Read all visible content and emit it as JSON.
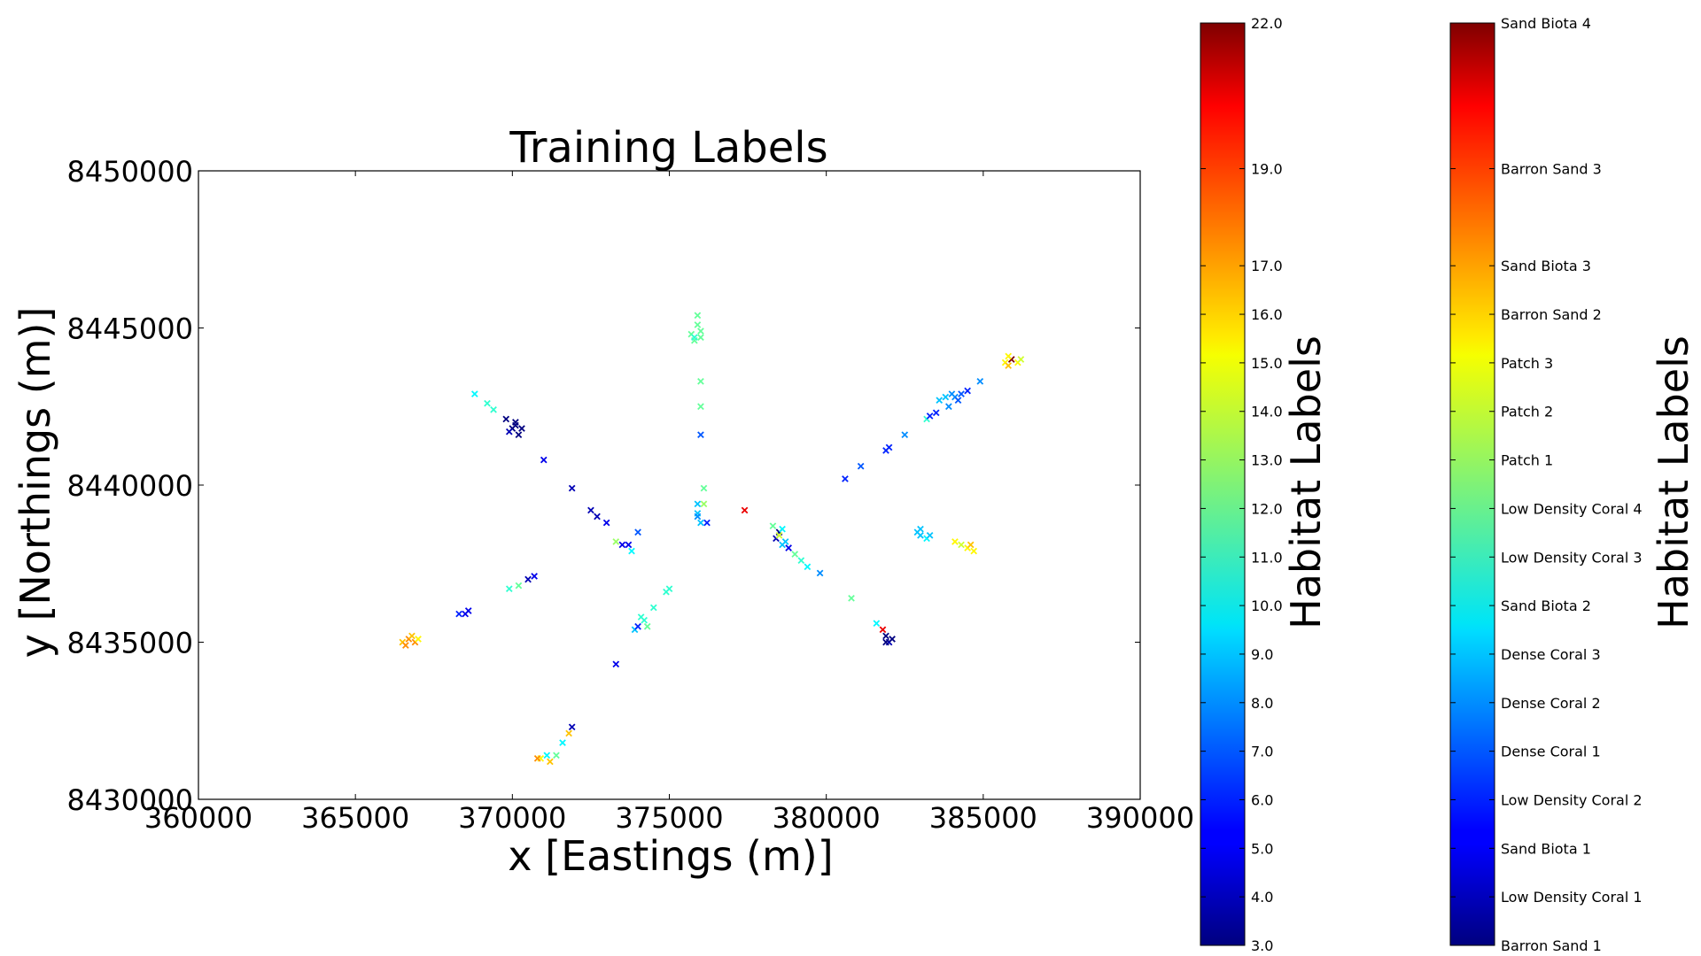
{
  "chart_data": {
    "type": "scatter",
    "title": "Training Labels",
    "xlabel": "x [Eastings (m)]",
    "ylabel": "y [Northings (m)]",
    "xlim": [
      360000,
      390000
    ],
    "ylim": [
      8430000,
      8450000
    ],
    "xticks": [
      "360000",
      "365000",
      "370000",
      "375000",
      "380000",
      "385000",
      "390000"
    ],
    "yticks": [
      "8430000",
      "8435000",
      "8440000",
      "8445000",
      "8450000"
    ],
    "marker": "x",
    "colormap": "jet",
    "grid": false,
    "points": [
      [
        368800,
        8442900,
        10
      ],
      [
        369200,
        8442600,
        11
      ],
      [
        369400,
        8442400,
        11
      ],
      [
        369800,
        8442100,
        3
      ],
      [
        370000,
        8441800,
        3
      ],
      [
        370100,
        8442000,
        3
      ],
      [
        369900,
        8441700,
        4
      ],
      [
        370300,
        8441800,
        3
      ],
      [
        370200,
        8441600,
        3
      ],
      [
        370100,
        8441900,
        3
      ],
      [
        371000,
        8440800,
        5
      ],
      [
        371900,
        8439900,
        4
      ],
      [
        372500,
        8439200,
        4
      ],
      [
        372700,
        8439000,
        4
      ],
      [
        373000,
        8438800,
        5
      ],
      [
        373300,
        8438200,
        13
      ],
      [
        373500,
        8438100,
        5
      ],
      [
        373700,
        8438100,
        5
      ],
      [
        373800,
        8437900,
        10
      ],
      [
        374000,
        8438500,
        7
      ],
      [
        375700,
        8444800,
        12
      ],
      [
        375800,
        8444600,
        12
      ],
      [
        375900,
        8445100,
        12
      ],
      [
        375900,
        8445400,
        12
      ],
      [
        376000,
        8444900,
        12
      ],
      [
        376000,
        8444700,
        12
      ],
      [
        375800,
        8444700,
        11
      ],
      [
        376000,
        8443300,
        12
      ],
      [
        376000,
        8442500,
        12
      ],
      [
        376000,
        8441600,
        7
      ],
      [
        376100,
        8439900,
        12
      ],
      [
        376100,
        8439400,
        13
      ],
      [
        375900,
        8439400,
        9
      ],
      [
        375900,
        8439100,
        9
      ],
      [
        376000,
        8438800,
        9
      ],
      [
        375900,
        8439000,
        8
      ],
      [
        376200,
        8438800,
        6
      ],
      [
        377400,
        8439200,
        20
      ],
      [
        378300,
        8438700,
        12
      ],
      [
        378400,
        8438300,
        4
      ],
      [
        378500,
        8438500,
        3
      ],
      [
        378600,
        8438600,
        10
      ],
      [
        378700,
        8438200,
        9
      ],
      [
        378600,
        8438100,
        9
      ],
      [
        378800,
        8438000,
        5
      ],
      [
        379000,
        8437800,
        12
      ],
      [
        379200,
        8437600,
        11
      ],
      [
        379400,
        8437400,
        10
      ],
      [
        379800,
        8437200,
        8
      ],
      [
        378500,
        8438400,
        14
      ],
      [
        380800,
        8436400,
        12
      ],
      [
        381600,
        8435600,
        10
      ],
      [
        381800,
        8435400,
        20
      ],
      [
        381900,
        8435200,
        3
      ],
      [
        382000,
        8435000,
        4
      ],
      [
        382100,
        8435100,
        3
      ],
      [
        381900,
        8435000,
        3
      ],
      [
        380600,
        8440200,
        6
      ],
      [
        381100,
        8440600,
        7
      ],
      [
        381900,
        8441100,
        6
      ],
      [
        382000,
        8441200,
        6
      ],
      [
        382500,
        8441600,
        8
      ],
      [
        383200,
        8442100,
        11
      ],
      [
        383300,
        8442200,
        6
      ],
      [
        383500,
        8442300,
        6
      ],
      [
        383600,
        8442700,
        9
      ],
      [
        383800,
        8442800,
        9
      ],
      [
        383900,
        8442500,
        8
      ],
      [
        384000,
        8442900,
        8
      ],
      [
        384100,
        8442800,
        8
      ],
      [
        384200,
        8442700,
        7
      ],
      [
        384300,
        8442900,
        7
      ],
      [
        384500,
        8443000,
        6
      ],
      [
        384900,
        8443300,
        8
      ],
      [
        385700,
        8443900,
        15
      ],
      [
        385800,
        8443800,
        16
      ],
      [
        385900,
        8444000,
        22
      ],
      [
        386100,
        8443900,
        15
      ],
      [
        386200,
        8444000,
        14
      ],
      [
        385800,
        8444100,
        15
      ],
      [
        383000,
        8438600,
        9
      ],
      [
        383000,
        8438400,
        9
      ],
      [
        383200,
        8438300,
        10
      ],
      [
        382900,
        8438500,
        9
      ],
      [
        383300,
        8438400,
        9
      ],
      [
        384100,
        8438200,
        15
      ],
      [
        384300,
        8438100,
        14
      ],
      [
        384500,
        8438000,
        15
      ],
      [
        384700,
        8437900,
        15
      ],
      [
        384600,
        8438100,
        16
      ],
      [
        368300,
        8435900,
        6
      ],
      [
        368600,
        8436000,
        5
      ],
      [
        368500,
        8435900,
        5
      ],
      [
        369900,
        8436700,
        11
      ],
      [
        370200,
        8436800,
        12
      ],
      [
        370500,
        8437000,
        4
      ],
      [
        370700,
        8437100,
        5
      ],
      [
        366500,
        8435000,
        16
      ],
      [
        366700,
        8435100,
        17
      ],
      [
        366900,
        8435000,
        17
      ],
      [
        367000,
        8435100,
        15
      ],
      [
        366600,
        8434900,
        17
      ],
      [
        366800,
        8435200,
        16
      ],
      [
        373300,
        8434300,
        5
      ],
      [
        373900,
        8435400,
        9
      ],
      [
        374000,
        8435500,
        6
      ],
      [
        374200,
        8435700,
        11
      ],
      [
        374300,
        8435500,
        12
      ],
      [
        374500,
        8436100,
        11
      ],
      [
        374900,
        8436600,
        11
      ],
      [
        375000,
        8436700,
        11
      ],
      [
        374100,
        8435800,
        11
      ],
      [
        370900,
        8431300,
        15
      ],
      [
        371100,
        8431400,
        10
      ],
      [
        371200,
        8431200,
        16
      ],
      [
        371400,
        8431400,
        12
      ],
      [
        371600,
        8431800,
        10
      ],
      [
        371800,
        8432100,
        16
      ],
      [
        371900,
        8432300,
        4
      ],
      [
        370800,
        8431300,
        17
      ]
    ],
    "colorbars": [
      {
        "label": "Habitat Labels",
        "min": 3,
        "max": 22,
        "ticks": [
          {
            "value": 3,
            "label": "3.0"
          },
          {
            "value": 4,
            "label": "4.0"
          },
          {
            "value": 5,
            "label": "5.0"
          },
          {
            "value": 6,
            "label": "6.0"
          },
          {
            "value": 7,
            "label": "7.0"
          },
          {
            "value": 8,
            "label": "8.0"
          },
          {
            "value": 9,
            "label": "9.0"
          },
          {
            "value": 10,
            "label": "10.0"
          },
          {
            "value": 11,
            "label": "11.0"
          },
          {
            "value": 12,
            "label": "12.0"
          },
          {
            "value": 13,
            "label": "13.0"
          },
          {
            "value": 14,
            "label": "14.0"
          },
          {
            "value": 15,
            "label": "15.0"
          },
          {
            "value": 16,
            "label": "16.0"
          },
          {
            "value": 17,
            "label": "17.0"
          },
          {
            "value": 19,
            "label": "19.0"
          },
          {
            "value": 22,
            "label": "22.0"
          }
        ]
      },
      {
        "label": "Habitat Labels",
        "min": 3,
        "max": 22,
        "ticks": [
          {
            "value": 3,
            "label": "Barron Sand 1"
          },
          {
            "value": 4,
            "label": "Low Density Coral 1"
          },
          {
            "value": 5,
            "label": "Sand Biota 1"
          },
          {
            "value": 6,
            "label": "Low Density Coral 2"
          },
          {
            "value": 7,
            "label": "Dense Coral 1"
          },
          {
            "value": 8,
            "label": "Dense Coral 2"
          },
          {
            "value": 9,
            "label": "Dense Coral 3"
          },
          {
            "value": 10,
            "label": "Sand Biota 2"
          },
          {
            "value": 11,
            "label": "Low Density Coral 3"
          },
          {
            "value": 12,
            "label": "Low Density Coral 4"
          },
          {
            "value": 13,
            "label": "Patch 1"
          },
          {
            "value": 14,
            "label": "Patch 2"
          },
          {
            "value": 15,
            "label": "Patch 3"
          },
          {
            "value": 16,
            "label": "Barron Sand 2"
          },
          {
            "value": 17,
            "label": "Sand Biota 3"
          },
          {
            "value": 19,
            "label": "Barron Sand 3"
          },
          {
            "value": 22,
            "label": "Sand Biota 4"
          }
        ]
      }
    ]
  }
}
